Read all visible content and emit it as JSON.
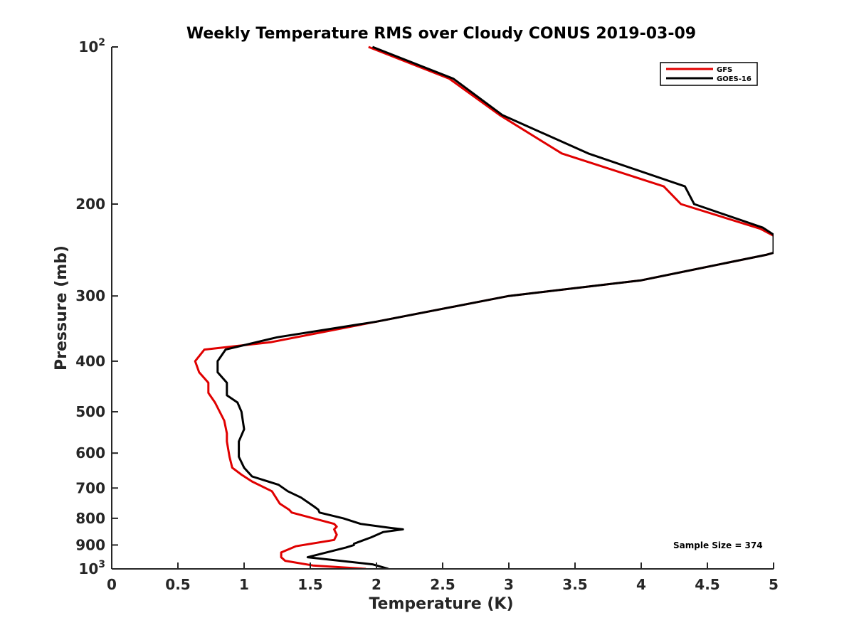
{
  "chart_data": {
    "type": "line",
    "title": "Weekly Temperature RMS over Cloudy CONUS 2019-03-09",
    "xlabel": "Temperature (K)",
    "ylabel": "Pressure (mb)",
    "xlim": [
      0,
      5
    ],
    "ylim": [
      100,
      1000
    ],
    "y_scale": "log",
    "y_reversed": true,
    "grid": false,
    "legend_position": "top-right",
    "x_ticks": [
      {
        "value": 0,
        "label": "0"
      },
      {
        "value": 0.5,
        "label": "0.5"
      },
      {
        "value": 1,
        "label": "1"
      },
      {
        "value": 1.5,
        "label": "1.5"
      },
      {
        "value": 2,
        "label": "2"
      },
      {
        "value": 2.5,
        "label": "2.5"
      },
      {
        "value": 3,
        "label": "3"
      },
      {
        "value": 3.5,
        "label": "3.5"
      },
      {
        "value": 4,
        "label": "4"
      },
      {
        "value": 4.5,
        "label": "4.5"
      },
      {
        "value": 5,
        "label": "5"
      }
    ],
    "y_ticks": [
      {
        "value": 100,
        "label": "10",
        "sup": "2"
      },
      {
        "value": 200,
        "label": "200"
      },
      {
        "value": 300,
        "label": "300"
      },
      {
        "value": 400,
        "label": "400"
      },
      {
        "value": 500,
        "label": "500"
      },
      {
        "value": 600,
        "label": "600"
      },
      {
        "value": 700,
        "label": "700"
      },
      {
        "value": 800,
        "label": "800"
      },
      {
        "value": 900,
        "label": "900"
      },
      {
        "value": 1000,
        "label": "10",
        "sup": "3"
      }
    ],
    "series": [
      {
        "name": "GFS",
        "color": "#e00000",
        "points": [
          [
            1.94,
            100
          ],
          [
            2.55,
            115
          ],
          [
            2.93,
            135
          ],
          [
            3.4,
            160
          ],
          [
            4.17,
            185
          ],
          [
            4.3,
            200
          ],
          [
            4.9,
            223
          ],
          [
            5.0,
            230
          ],
          [
            5.0,
            248
          ],
          [
            4.95,
            250
          ],
          [
            4.0,
            280
          ],
          [
            3.0,
            300
          ],
          [
            2.0,
            336
          ],
          [
            1.2,
            368
          ],
          [
            0.7,
            380
          ],
          [
            0.63,
            400
          ],
          [
            0.66,
            420
          ],
          [
            0.73,
            440
          ],
          [
            0.73,
            460
          ],
          [
            0.78,
            480
          ],
          [
            0.85,
            520
          ],
          [
            0.87,
            550
          ],
          [
            0.87,
            570
          ],
          [
            0.89,
            610
          ],
          [
            0.91,
            640
          ],
          [
            0.98,
            660
          ],
          [
            1.06,
            680
          ],
          [
            1.21,
            710
          ],
          [
            1.27,
            750
          ],
          [
            1.34,
            770
          ],
          [
            1.36,
            780
          ],
          [
            1.68,
            820
          ],
          [
            1.7,
            830
          ],
          [
            1.68,
            840
          ],
          [
            1.69,
            850
          ],
          [
            1.7,
            860
          ],
          [
            1.68,
            880
          ],
          [
            1.39,
            905
          ],
          [
            1.28,
            930
          ],
          [
            1.28,
            950
          ],
          [
            1.31,
            965
          ],
          [
            1.52,
            985
          ],
          [
            1.92,
            1000
          ]
        ]
      },
      {
        "name": "GOES-16",
        "color": "#000000",
        "points": [
          [
            1.97,
            100
          ],
          [
            2.58,
            115
          ],
          [
            2.95,
            135
          ],
          [
            3.6,
            160
          ],
          [
            4.33,
            185
          ],
          [
            4.4,
            200
          ],
          [
            4.92,
            222
          ],
          [
            5.0,
            229
          ],
          [
            5.0,
            248
          ],
          [
            4.95,
            250
          ],
          [
            4.0,
            280
          ],
          [
            3.0,
            300
          ],
          [
            2.0,
            336
          ],
          [
            1.25,
            360
          ],
          [
            0.86,
            380
          ],
          [
            0.8,
            400
          ],
          [
            0.8,
            420
          ],
          [
            0.87,
            440
          ],
          [
            0.87,
            465
          ],
          [
            0.95,
            480
          ],
          [
            0.98,
            500
          ],
          [
            1.0,
            540
          ],
          [
            0.96,
            570
          ],
          [
            0.96,
            610
          ],
          [
            1.0,
            640
          ],
          [
            1.06,
            665
          ],
          [
            1.26,
            690
          ],
          [
            1.33,
            710
          ],
          [
            1.43,
            730
          ],
          [
            1.53,
            760
          ],
          [
            1.56,
            770
          ],
          [
            1.57,
            780
          ],
          [
            1.75,
            800
          ],
          [
            1.88,
            820
          ],
          [
            2.11,
            835
          ],
          [
            2.2,
            840
          ],
          [
            2.05,
            850
          ],
          [
            1.96,
            870
          ],
          [
            1.83,
            895
          ],
          [
            1.83,
            900
          ],
          [
            1.77,
            910
          ],
          [
            1.48,
            950
          ],
          [
            1.97,
            980
          ],
          [
            2.09,
            1000
          ]
        ]
      }
    ],
    "annotation": "Sample Size = 374"
  }
}
